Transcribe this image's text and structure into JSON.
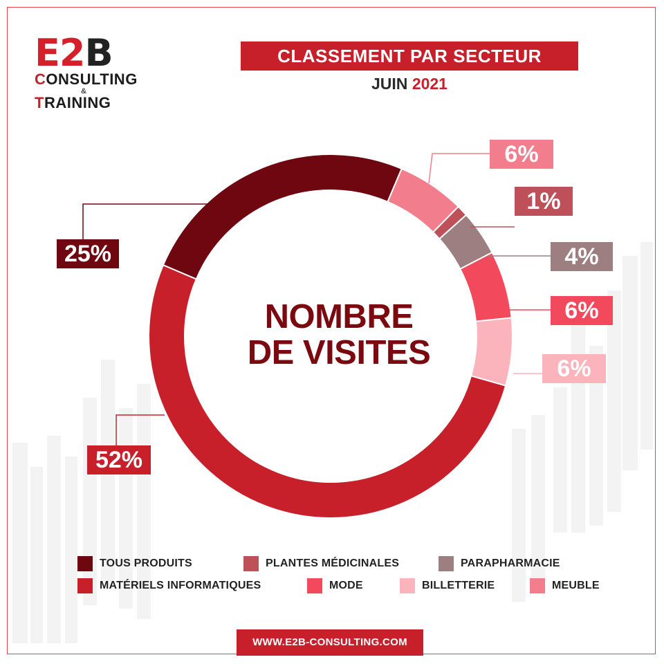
{
  "logo": {
    "e2b_red": "E2",
    "e2b_dark": "B",
    "line1_first": "C",
    "line1_rest": "ONSULTING",
    "ampersand": "&",
    "line2_first": "T",
    "line2_rest": "RAINING"
  },
  "header": {
    "title": "CLASSEMENT PAR SECTEUR",
    "subtitle_month": "JUIN",
    "subtitle_year": "2021"
  },
  "chart_data": {
    "type": "pie",
    "variant": "donut",
    "center_label_line1": "NOMBRE",
    "center_label_line2": "DE VISITES",
    "slices": [
      {
        "name": "TOUS PRODUITS",
        "value": 25,
        "label": "25%",
        "color": "#6e0710"
      },
      {
        "name": "MEUBLE",
        "value": 6,
        "label": "6%",
        "color": "#f27d8c"
      },
      {
        "name": "PLANTES MÉDICINALES",
        "value": 1,
        "label": "1%",
        "color": "#bd5058"
      },
      {
        "name": "PARAPHARMACIE",
        "value": 4,
        "label": "4%",
        "color": "#9d7f82"
      },
      {
        "name": "MODE",
        "value": 6,
        "label": "6%",
        "color": "#f24a5c"
      },
      {
        "name": "BILLETTERIE",
        "value": 6,
        "label": "6%",
        "color": "#fbb3bc"
      },
      {
        "name": "MATÉRIELS INFORMATIQUES",
        "value": 52,
        "label": "52%",
        "color": "#c8202a"
      }
    ],
    "legend": [
      {
        "name": "TOUS PRODUITS",
        "color": "#6e0710"
      },
      {
        "name": "PLANTES MÉDICINALES",
        "color": "#bd5058"
      },
      {
        "name": "PARAPHARMACIE",
        "color": "#9d7f82"
      },
      {
        "name": "MATÉRIELS INFORMATIQUES",
        "color": "#c8202a"
      },
      {
        "name": "MODE",
        "color": "#f24a5c"
      },
      {
        "name": "BILLETTERIE",
        "color": "#fbb3bc"
      },
      {
        "name": "MEUBLE",
        "color": "#f27d8c"
      }
    ],
    "legend_placement": "bottom"
  },
  "footer": {
    "url": "WWW.E2B-CONSULTING.COM"
  },
  "colors": {
    "brand_red": "#c8202a",
    "dark_red": "#7a0a10"
  }
}
